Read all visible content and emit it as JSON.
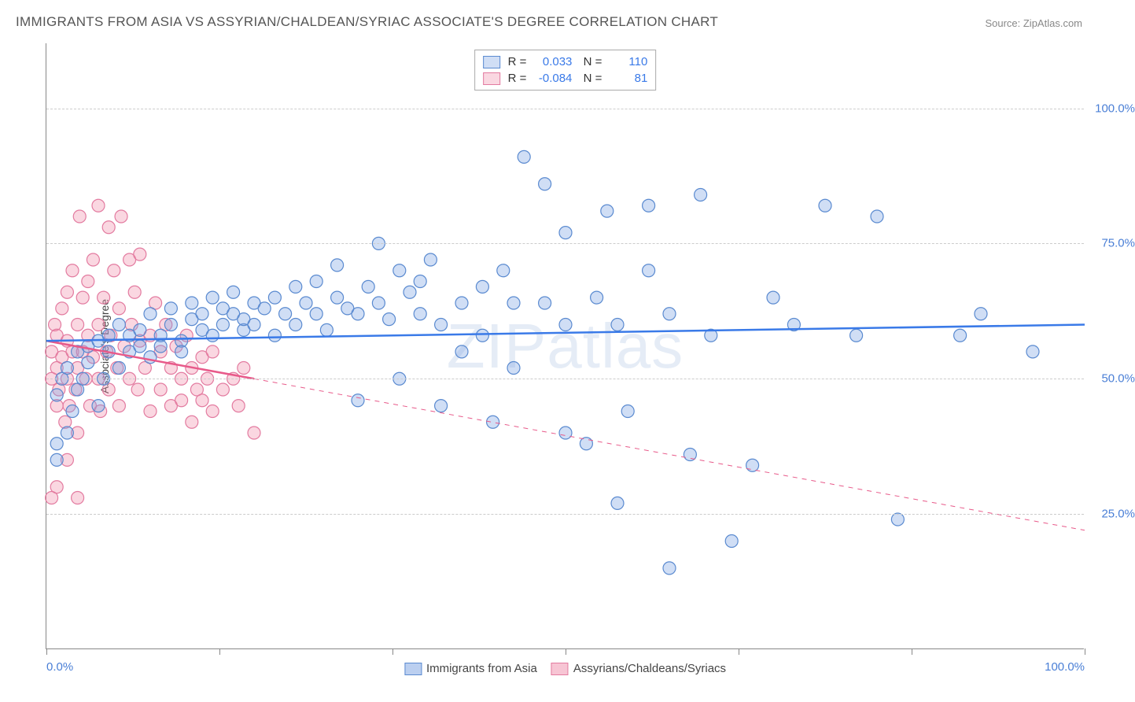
{
  "title": "IMMIGRANTS FROM ASIA VS ASSYRIAN/CHALDEAN/SYRIAC ASSOCIATE'S DEGREE CORRELATION CHART",
  "source": "Source: ZipAtlas.com",
  "ylabel": "Associate's Degree",
  "watermark": "ZIPatlas",
  "chart": {
    "type": "scatter",
    "xlim": [
      0,
      100
    ],
    "ylim": [
      0,
      112
    ],
    "y_gridlines": [
      25,
      50,
      75,
      100
    ],
    "y_tick_labels": [
      "25.0%",
      "50.0%",
      "75.0%",
      "100.0%"
    ],
    "x_ticks": [
      0,
      16.67,
      33.33,
      50,
      66.67,
      83.33,
      100
    ],
    "x_tick_labels": {
      "0": "0.0%",
      "100": "100.0%"
    },
    "background_color": "#ffffff",
    "grid_color": "#cccccc",
    "axis_color": "#888888",
    "tick_label_color": "#4a7fd6",
    "marker_radius": 8,
    "marker_stroke_width": 1.2,
    "line_width": 2.5,
    "series": [
      {
        "name": "Immigrants from Asia",
        "fill_color": "rgba(120,160,225,0.35)",
        "stroke_color": "#5a8ad0",
        "line_color": "#3a7ae8",
        "R": "0.033",
        "N": "110",
        "trend": {
          "y_at_x0": 57,
          "y_at_x100": 60,
          "dashed_after_xmax": false
        },
        "points": [
          [
            1,
            35
          ],
          [
            1,
            38
          ],
          [
            1,
            47
          ],
          [
            1.5,
            50
          ],
          [
            2,
            40
          ],
          [
            2,
            52
          ],
          [
            2.5,
            44
          ],
          [
            3,
            55
          ],
          [
            3,
            48
          ],
          [
            3.5,
            50
          ],
          [
            4,
            53
          ],
          [
            4,
            56
          ],
          [
            5,
            45
          ],
          [
            5,
            57
          ],
          [
            5.5,
            50
          ],
          [
            6,
            55
          ],
          [
            6,
            58
          ],
          [
            7,
            52
          ],
          [
            7,
            60
          ],
          [
            8,
            55
          ],
          [
            8,
            58
          ],
          [
            9,
            56
          ],
          [
            9,
            59
          ],
          [
            10,
            54
          ],
          [
            10,
            62
          ],
          [
            11,
            58
          ],
          [
            11,
            56
          ],
          [
            12,
            60
          ],
          [
            12,
            63
          ],
          [
            13,
            57
          ],
          [
            13,
            55
          ],
          [
            14,
            61
          ],
          [
            14,
            64
          ],
          [
            15,
            59
          ],
          [
            15,
            62
          ],
          [
            16,
            58
          ],
          [
            16,
            65
          ],
          [
            17,
            60
          ],
          [
            17,
            63
          ],
          [
            18,
            62
          ],
          [
            18,
            66
          ],
          [
            19,
            59
          ],
          [
            19,
            61
          ],
          [
            20,
            64
          ],
          [
            20,
            60
          ],
          [
            21,
            63
          ],
          [
            22,
            65
          ],
          [
            22,
            58
          ],
          [
            23,
            62
          ],
          [
            24,
            67
          ],
          [
            24,
            60
          ],
          [
            25,
            64
          ],
          [
            26,
            62
          ],
          [
            26,
            68
          ],
          [
            27,
            59
          ],
          [
            28,
            65
          ],
          [
            28,
            71
          ],
          [
            29,
            63
          ],
          [
            30,
            62
          ],
          [
            30,
            46
          ],
          [
            31,
            67
          ],
          [
            32,
            64
          ],
          [
            32,
            75
          ],
          [
            33,
            61
          ],
          [
            34,
            70
          ],
          [
            34,
            50
          ],
          [
            35,
            66
          ],
          [
            36,
            68
          ],
          [
            36,
            62
          ],
          [
            37,
            72
          ],
          [
            38,
            60
          ],
          [
            38,
            45
          ],
          [
            40,
            64
          ],
          [
            40,
            55
          ],
          [
            42,
            67
          ],
          [
            42,
            58
          ],
          [
            43,
            42
          ],
          [
            44,
            70
          ],
          [
            45,
            52
          ],
          [
            46,
            91
          ],
          [
            48,
            86
          ],
          [
            48,
            64
          ],
          [
            50,
            60
          ],
          [
            50,
            77
          ],
          [
            52,
            38
          ],
          [
            53,
            65
          ],
          [
            54,
            81
          ],
          [
            55,
            27
          ],
          [
            56,
            44
          ],
          [
            58,
            82
          ],
          [
            58,
            70
          ],
          [
            60,
            62
          ],
          [
            60,
            15
          ],
          [
            62,
            36
          ],
          [
            63,
            84
          ],
          [
            64,
            58
          ],
          [
            66,
            20
          ],
          [
            68,
            34
          ],
          [
            70,
            65
          ],
          [
            72,
            60
          ],
          [
            75,
            82
          ],
          [
            78,
            58
          ],
          [
            80,
            80
          ],
          [
            82,
            24
          ],
          [
            88,
            58
          ],
          [
            90,
            62
          ],
          [
            95,
            55
          ],
          [
            45,
            64
          ],
          [
            50,
            40
          ],
          [
            55,
            60
          ]
        ]
      },
      {
        "name": "Assyrians/Chaldeans/Syriacs",
        "fill_color": "rgba(240,140,170,0.35)",
        "stroke_color": "#e37ba0",
        "line_color": "#e85a8a",
        "R": "-0.084",
        "N": "81",
        "trend": {
          "y_at_x0": 57,
          "y_at_x100": 22,
          "solid_until_x": 20
        },
        "points": [
          [
            0.5,
            55
          ],
          [
            0.5,
            50
          ],
          [
            0.8,
            60
          ],
          [
            1,
            52
          ],
          [
            1,
            45
          ],
          [
            1,
            58
          ],
          [
            1.2,
            48
          ],
          [
            1.5,
            63
          ],
          [
            1.5,
            54
          ],
          [
            1.8,
            42
          ],
          [
            2,
            66
          ],
          [
            2,
            50
          ],
          [
            2,
            57
          ],
          [
            2.2,
            45
          ],
          [
            2.5,
            70
          ],
          [
            2.5,
            55
          ],
          [
            2.8,
            48
          ],
          [
            3,
            60
          ],
          [
            3,
            52
          ],
          [
            3,
            40
          ],
          [
            3.2,
            80
          ],
          [
            3.5,
            55
          ],
          [
            3.5,
            65
          ],
          [
            3.8,
            50
          ],
          [
            4,
            58
          ],
          [
            4,
            68
          ],
          [
            4.2,
            45
          ],
          [
            4.5,
            72
          ],
          [
            4.5,
            54
          ],
          [
            5,
            82
          ],
          [
            5,
            60
          ],
          [
            5,
            50
          ],
          [
            5.2,
            44
          ],
          [
            5.5,
            65
          ],
          [
            5.8,
            55
          ],
          [
            6,
            78
          ],
          [
            6,
            48
          ],
          [
            6.2,
            58
          ],
          [
            6.5,
            70
          ],
          [
            6.8,
            52
          ],
          [
            7,
            63
          ],
          [
            7,
            45
          ],
          [
            7.2,
            80
          ],
          [
            7.5,
            56
          ],
          [
            8,
            72
          ],
          [
            8,
            50
          ],
          [
            8.2,
            60
          ],
          [
            8.5,
            66
          ],
          [
            8.8,
            48
          ],
          [
            9,
            57
          ],
          [
            9,
            73
          ],
          [
            9.5,
            52
          ],
          [
            10,
            58
          ],
          [
            10,
            44
          ],
          [
            10.5,
            64
          ],
          [
            11,
            55
          ],
          [
            11,
            48
          ],
          [
            11.5,
            60
          ],
          [
            12,
            52
          ],
          [
            12,
            45
          ],
          [
            12.5,
            56
          ],
          [
            13,
            50
          ],
          [
            13,
            46
          ],
          [
            13.5,
            58
          ],
          [
            14,
            42
          ],
          [
            14,
            52
          ],
          [
            14.5,
            48
          ],
          [
            15,
            54
          ],
          [
            15,
            46
          ],
          [
            15.5,
            50
          ],
          [
            16,
            44
          ],
          [
            16,
            55
          ],
          [
            17,
            48
          ],
          [
            18,
            50
          ],
          [
            18.5,
            45
          ],
          [
            19,
            52
          ],
          [
            20,
            40
          ],
          [
            1,
            30
          ],
          [
            2,
            35
          ],
          [
            3,
            28
          ],
          [
            0.5,
            28
          ]
        ]
      }
    ]
  },
  "legend_bottom": [
    {
      "label": "Immigrants from Asia",
      "fill": "rgba(120,160,225,0.5)",
      "stroke": "#5a8ad0"
    },
    {
      "label": "Assyrians/Chaldeans/Syriacs",
      "fill": "rgba(240,140,170,0.5)",
      "stroke": "#e37ba0"
    }
  ]
}
